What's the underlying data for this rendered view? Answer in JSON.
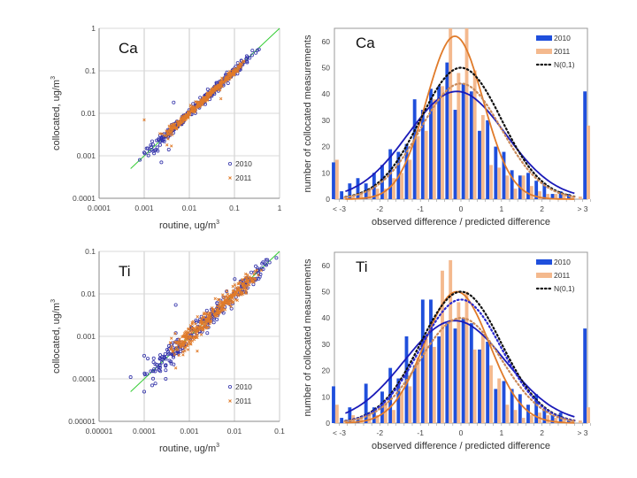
{
  "chart_data": [
    {
      "id": "ca_scatter",
      "type": "scatter",
      "panel_label": "Ca",
      "xscale": "log",
      "yscale": "log",
      "xlabel": "routine,  ug/m",
      "xlabel_sup": "3",
      "ylabel": "collocated,  ug/m",
      "ylabel_sup": "3",
      "xlim": [
        0.0001,
        1
      ],
      "ylim": [
        0.0001,
        1
      ],
      "xticks": [
        "0.0001",
        "0.001",
        "0.01",
        "0.1",
        "1"
      ],
      "yticks": [
        "0.0001",
        "0.001",
        "0.01",
        "0.1",
        "1"
      ],
      "grid": true,
      "legend": [
        {
          "name": "2010",
          "marker": "circle",
          "color": "#3333aa"
        },
        {
          "name": "2011",
          "marker": "x",
          "color": "#e07b2a"
        }
      ],
      "legend_position": "bottom-right",
      "reference_line": {
        "name": "1:1",
        "color": "#33cc33",
        "from": 0.0005,
        "to": 1
      },
      "series": [
        {
          "name": "2010",
          "color": "#3333aa",
          "trend_from": 0.0008,
          "trend_to": 0.35,
          "scatter_log_sigma": 0.06,
          "n": 260,
          "outliers": [
            [
              0.0008,
              0.0008
            ],
            [
              0.0024,
              0.0007
            ],
            [
              0.0045,
              0.018
            ],
            [
              0.001,
              0.0012
            ],
            [
              0.0012,
              0.0015
            ],
            [
              0.0015,
              0.0022
            ],
            [
              0.002,
              0.0013
            ],
            [
              0.0035,
              0.0014
            ],
            [
              0.25,
              0.3
            ],
            [
              0.35,
              0.32
            ]
          ]
        },
        {
          "name": "2011",
          "color": "#e07b2a",
          "trend_from": 0.002,
          "trend_to": 0.2,
          "scatter_log_sigma": 0.04,
          "n": 320,
          "outliers": [
            [
              0.001,
              0.007
            ],
            [
              0.004,
              0.0017
            ],
            [
              0.05,
              0.022
            ],
            [
              0.0028,
              0.003
            ],
            [
              0.0032,
              0.0018
            ]
          ]
        }
      ]
    },
    {
      "id": "ca_hist",
      "type": "bar",
      "panel_label": "Ca",
      "xlabel": "observed difference / predicted difference",
      "ylabel": "number of collocated measurements",
      "xticks": [
        "< -3",
        "-2",
        "-1",
        "0",
        "1",
        "2",
        "> 3"
      ],
      "ylim": [
        0,
        65
      ],
      "yticks": [
        0,
        10,
        20,
        30,
        40,
        50,
        60
      ],
      "bin_width": 0.2,
      "bin_centers": [
        -3.1,
        -2.9,
        -2.7,
        -2.5,
        -2.3,
        -2.1,
        -1.9,
        -1.7,
        -1.5,
        -1.3,
        -1.1,
        -0.9,
        -0.7,
        -0.5,
        -0.3,
        -0.1,
        0.1,
        0.3,
        0.5,
        0.7,
        0.9,
        1.1,
        1.3,
        1.5,
        1.7,
        1.9,
        2.1,
        2.3,
        2.5,
        2.7,
        2.9,
        3.1
      ],
      "legend_position": "top-right",
      "series": [
        {
          "name": "2010",
          "color": "#1f4fdc",
          "values": [
            14,
            3,
            6,
            8,
            6,
            10,
            13,
            19,
            18,
            21,
            38,
            34,
            42,
            43,
            52,
            34,
            44,
            41,
            26,
            30,
            20,
            18,
            11,
            9,
            10,
            7,
            6,
            2,
            3,
            2,
            0,
            41
          ]
        },
        {
          "name": "2011",
          "color": "#f4b98e",
          "values": [
            15,
            1,
            1,
            2,
            4,
            4,
            4,
            8,
            10,
            15,
            24,
            26,
            38,
            43,
            68,
            48,
            68,
            49,
            32,
            13,
            12,
            9,
            4,
            9,
            5,
            3,
            2,
            2,
            2,
            1,
            1,
            28
          ]
        }
      ],
      "curves": [
        {
          "name": "2010 fit",
          "color": "#1a1ab8",
          "style": "solid",
          "peak": 41,
          "mean": -0.1,
          "sigma": 1.2
        },
        {
          "name": "2011 fit",
          "color": "#e07b2a",
          "style": "solid",
          "peak": 62,
          "mean": -0.15,
          "sigma": 0.7
        },
        {
          "name": "N(0,1)",
          "color": "#111111",
          "style": "dotted",
          "peak": 50,
          "mean": 0,
          "sigma": 1.0
        },
        {
          "name": "N(0,1) scaled 2011",
          "color": "#c98a5a",
          "style": "dotted",
          "peak": 44,
          "mean": 0,
          "sigma": 1.0
        }
      ],
      "legend": [
        {
          "name": "2010",
          "kind": "bar",
          "color": "#1f4fdc"
        },
        {
          "name": "2011",
          "kind": "bar",
          "color": "#f4b98e"
        },
        {
          "name": "N(0,1)",
          "kind": "dotted",
          "color": "#111111"
        }
      ]
    },
    {
      "id": "ti_scatter",
      "type": "scatter",
      "panel_label": "Ti",
      "xscale": "log",
      "yscale": "log",
      "xlabel": "routine,  ug/m",
      "xlabel_sup": "3",
      "ylabel": "collocated,  ug/m",
      "ylabel_sup": "3",
      "xlim": [
        1e-05,
        0.1
      ],
      "ylim": [
        1e-05,
        0.1
      ],
      "xticks": [
        "0.00001",
        "0.0001",
        "0.001",
        "0.01",
        "0.1"
      ],
      "yticks": [
        "0.00001",
        "0.0001",
        "0.001",
        "0.01",
        "0.1"
      ],
      "grid": true,
      "legend": [
        {
          "name": "2010",
          "marker": "circle",
          "color": "#3333aa"
        },
        {
          "name": "2011",
          "marker": "x",
          "color": "#e07b2a"
        }
      ],
      "legend_position": "bottom-right",
      "reference_line": {
        "name": "1:1",
        "color": "#33cc33",
        "from": 5e-05,
        "to": 0.1
      },
      "series": [
        {
          "name": "2010",
          "color": "#3333aa",
          "trend_from": 8e-05,
          "trend_to": 0.085,
          "scatter_log_sigma": 0.12,
          "n": 240,
          "outliers": [
            [
              5e-05,
              0.00011
            ],
            [
              0.0001,
              5e-05
            ],
            [
              0.0001,
              0.00035
            ],
            [
              0.00012,
              0.0003
            ],
            [
              0.00015,
              7e-05
            ],
            [
              0.0005,
              0.0055
            ],
            [
              0.0005,
              0.0012
            ],
            [
              0.0003,
              0.0001
            ],
            [
              0.0003,
              0.00016
            ],
            [
              0.0025,
              0.0012
            ],
            [
              0.00045,
              0.00022
            ],
            [
              0.085,
              0.07
            ],
            [
              0.06,
              0.055
            ],
            [
              0.04,
              0.04
            ]
          ]
        },
        {
          "name": "2011",
          "color": "#e07b2a",
          "trend_from": 0.0003,
          "trend_to": 0.04,
          "scatter_log_sigma": 0.1,
          "n": 360,
          "outliers": [
            [
              0.0004,
              0.0009
            ],
            [
              0.0005,
              0.00018
            ],
            [
              0.0021,
              0.0028
            ],
            [
              0.0015,
              0.00045
            ]
          ]
        }
      ]
    },
    {
      "id": "ti_hist",
      "type": "bar",
      "panel_label": "Ti",
      "xlabel": "observed difference / predicted difference",
      "ylabel": "number of collocated measurements",
      "xticks": [
        "< -3",
        "-2",
        "-1",
        "0",
        "1",
        "2",
        "> 3"
      ],
      "ylim": [
        0,
        65
      ],
      "yticks": [
        0,
        10,
        20,
        30,
        40,
        50,
        60
      ],
      "bin_width": 0.2,
      "bin_centers": [
        -3.1,
        -2.9,
        -2.7,
        -2.5,
        -2.3,
        -2.1,
        -1.9,
        -1.7,
        -1.5,
        -1.3,
        -1.1,
        -0.9,
        -0.7,
        -0.5,
        -0.3,
        -0.1,
        0.1,
        0.3,
        0.5,
        0.7,
        0.9,
        1.1,
        1.3,
        1.5,
        1.7,
        1.9,
        2.1,
        2.3,
        2.5,
        2.7,
        2.9,
        3.1
      ],
      "legend_position": "top-right",
      "series": [
        {
          "name": "2010",
          "color": "#1f4fdc",
          "values": [
            14,
            2,
            6,
            2,
            15,
            6,
            12,
            21,
            17,
            33,
            22,
            47,
            47,
            33,
            38,
            36,
            40,
            38,
            28,
            31,
            13,
            16,
            13,
            11,
            7,
            11,
            5,
            3,
            4,
            1,
            0,
            36
          ]
        },
        {
          "name": "2011",
          "color": "#f4b98e",
          "values": [
            7,
            1,
            3,
            2,
            4,
            3,
            8,
            5,
            12,
            14,
            25,
            32,
            29,
            58,
            62,
            46,
            50,
            28,
            34,
            22,
            17,
            7,
            5,
            2,
            3,
            4,
            3,
            2,
            2,
            1,
            1,
            6
          ]
        }
      ],
      "curves": [
        {
          "name": "2010 fit",
          "color": "#1a1ab8",
          "style": "solid",
          "peak": 39,
          "mean": -0.15,
          "sigma": 1.25
        },
        {
          "name": "2011 fit",
          "color": "#e07b2a",
          "style": "solid",
          "peak": 50,
          "mean": -0.1,
          "sigma": 0.8
        },
        {
          "name": "N(0,1)",
          "color": "#111111",
          "style": "dotted",
          "peak": 50,
          "mean": 0,
          "sigma": 1.0
        },
        {
          "name": "N(0,1) scaled 2010",
          "color": "#2a2ad0",
          "style": "dotted",
          "peak": 47,
          "mean": 0,
          "sigma": 1.0
        },
        {
          "name": "N(0,1) scaled 2011",
          "color": "#c98a5a",
          "style": "dotted",
          "peak": 40,
          "mean": 0,
          "sigma": 1.0
        }
      ],
      "legend": [
        {
          "name": "2010",
          "kind": "bar",
          "color": "#1f4fdc"
        },
        {
          "name": "2011",
          "kind": "bar",
          "color": "#f4b98e"
        },
        {
          "name": "N(0,1)",
          "kind": "dotted",
          "color": "#111111"
        }
      ]
    }
  ]
}
